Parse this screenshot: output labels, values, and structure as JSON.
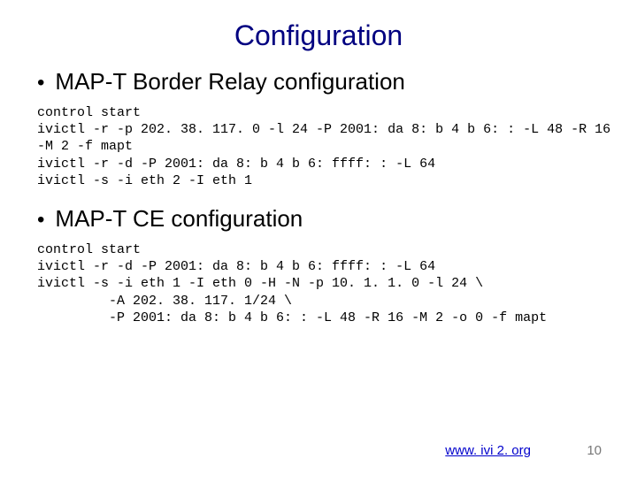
{
  "title": "Configuration",
  "sections": [
    {
      "bullet": "•",
      "heading": "MAP-T Border Relay configuration",
      "code": "control start\nivictl -r -p 202. 38. 117. 0 -l 24 -P 2001: da 8: b 4 b 6: : -L 48 -R 16\n-M 2 -f mapt\nivictl -r -d -P 2001: da 8: b 4 b 6: ffff: : -L 64\nivictl -s -i eth 2 -I eth 1"
    },
    {
      "bullet": "•",
      "heading": "MAP-T CE configuration",
      "code": "control start\nivictl -r -d -P 2001: da 8: b 4 b 6: ffff: : -L 64\nivictl -s -i eth 1 -I eth 0 -H -N -p 10. 1. 1. 0 -l 24 \\\n         -A 202. 38. 117. 1/24 \\\n         -P 2001: da 8: b 4 b 6: : -L 48 -R 16 -M 2 -o 0 -f mapt"
    }
  ],
  "footer": {
    "link": "www. ivi 2. org",
    "page": "10"
  }
}
